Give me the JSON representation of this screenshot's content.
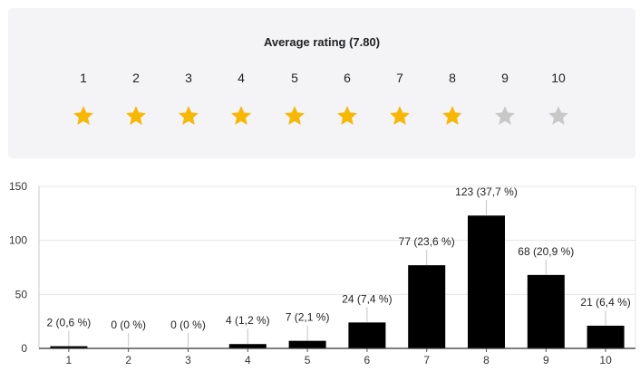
{
  "rating_panel": {
    "title": "Average rating (7.80)",
    "average": 7.8,
    "max_rating": 10,
    "scale_labels": [
      "1",
      "2",
      "3",
      "4",
      "5",
      "6",
      "7",
      "8",
      "9",
      "10"
    ],
    "star_fill_color": "#f9b800",
    "star_empty_color": "#c8c8c8",
    "icon": "star-icon"
  },
  "chart_data": {
    "type": "bar",
    "categories": [
      "1",
      "2",
      "3",
      "4",
      "5",
      "6",
      "7",
      "8",
      "9",
      "10"
    ],
    "values": [
      2,
      0,
      0,
      4,
      7,
      24,
      77,
      123,
      68,
      21
    ],
    "data_labels": [
      "2 (0,6 %)",
      "0 (0 %)",
      "0 (0 %)",
      "4 (1,2 %)",
      "7 (2,1 %)",
      "24 (7,4 %)",
      "77 (23,6 %)",
      "123 (37,7 %)",
      "68 (20,9 %)",
      "21 (6,4 %)"
    ],
    "yticks": [
      "0",
      "50",
      "100",
      "150"
    ],
    "ylim": [
      0,
      150
    ],
    "grid": true,
    "bar_color": "#000000",
    "title": "",
    "xlabel": "",
    "ylabel": ""
  }
}
